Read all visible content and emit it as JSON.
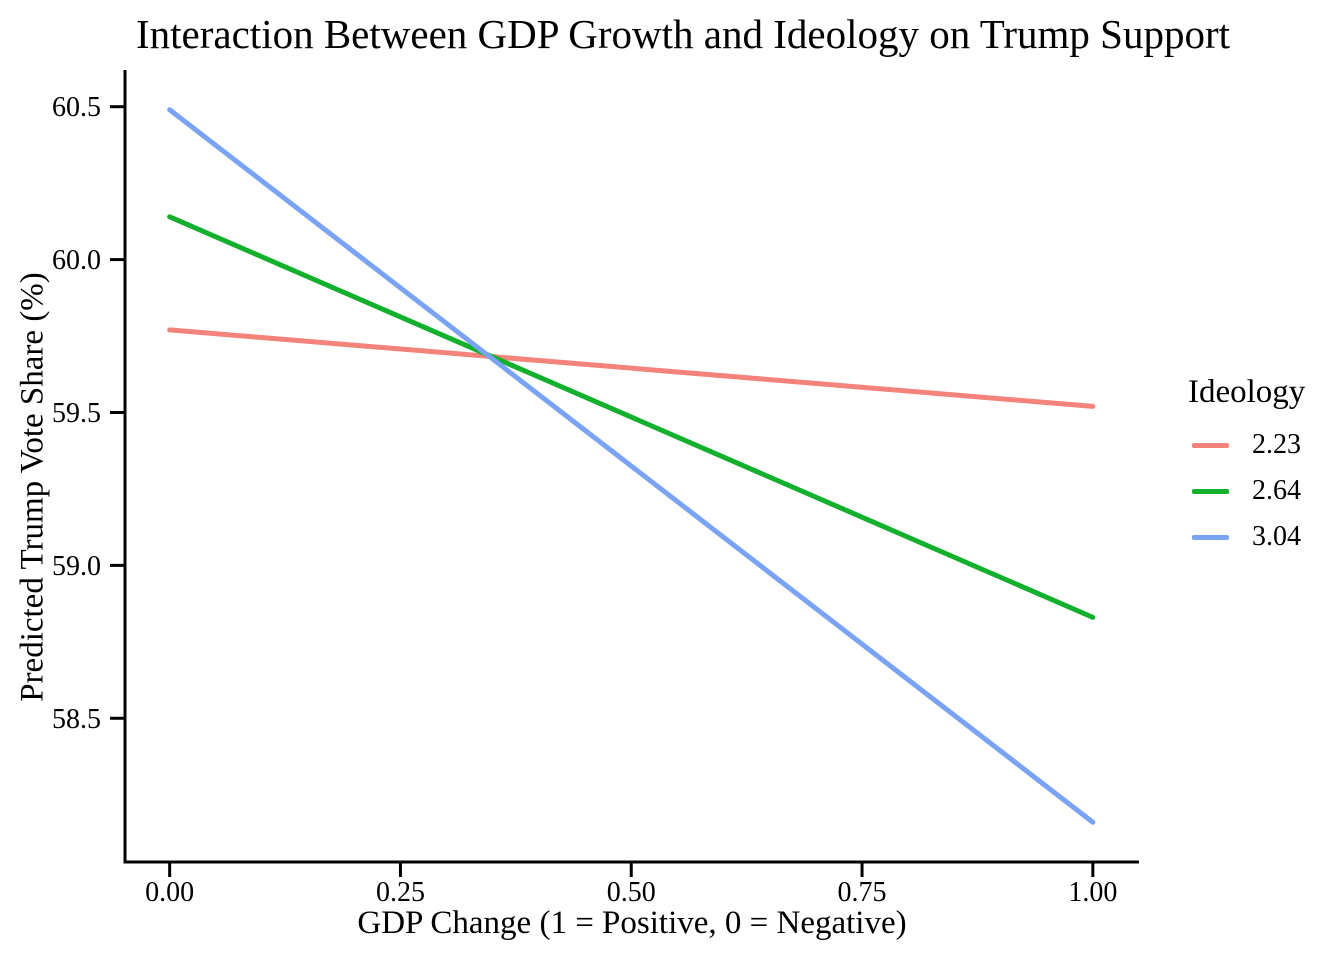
{
  "chart_data": {
    "type": "line",
    "title": "Interaction Between GDP Growth and Ideology on Trump Support",
    "xlabel": "GDP Change (1 = Positive, 0 = Negative)",
    "ylabel": "Predicted Trump Vote Share (%)",
    "x": [
      0,
      1
    ],
    "series": [
      {
        "name": "2.23",
        "color": "#F3837B",
        "values": [
          59.77,
          59.52
        ]
      },
      {
        "name": "2.64",
        "color": "#12B02C",
        "values": [
          60.14,
          58.83
        ]
      },
      {
        "name": "3.04",
        "color": "#7AA3F4",
        "values": [
          60.49,
          58.16
        ]
      }
    ],
    "xlim": [
      -0.05,
      1.05
    ],
    "ylim": [
      58.03,
      60.62
    ],
    "x_tick_values": [
      0,
      0.25,
      0.5,
      0.75,
      1
    ],
    "x_tick_labels": [
      "0.00",
      "0.25",
      "0.50",
      "0.75",
      "1.00"
    ],
    "y_tick_values": [
      58.5,
      59.0,
      59.5,
      60.0,
      60.5
    ],
    "y_tick_labels": [
      "58.5",
      "59.0",
      "59.5",
      "60.0",
      "60.5"
    ],
    "grid": false,
    "axis_color": "#000000",
    "background": "#FFFFFF",
    "legend": {
      "title": "Ideology",
      "position": "right",
      "entries": [
        "2.23",
        "2.64",
        "3.04"
      ]
    }
  }
}
